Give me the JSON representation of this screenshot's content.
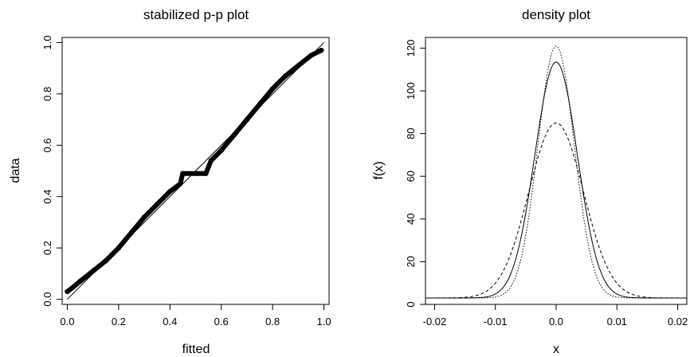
{
  "chart_data": [
    {
      "type": "scatter",
      "title": "stabilized p-p plot",
      "xlabel": "fitted",
      "ylabel": "data",
      "xlim": [
        -0.02,
        1.02
      ],
      "ylim": [
        -0.02,
        1.02
      ],
      "xticks": [
        "0.0",
        "0.2",
        "0.4",
        "0.6",
        "0.8",
        "1.0"
      ],
      "yticks": [
        "0.0",
        "0.2",
        "0.4",
        "0.6",
        "0.8",
        "1.0"
      ],
      "reference_line": {
        "x": [
          0,
          1
        ],
        "y": [
          0,
          1
        ]
      },
      "series": [
        {
          "x": [
            0.0,
            0.02,
            0.05,
            0.1,
            0.15,
            0.2,
            0.25,
            0.3,
            0.35,
            0.4,
            0.44,
            0.45,
            0.5,
            0.54,
            0.56,
            0.6,
            0.65,
            0.7,
            0.75,
            0.8,
            0.85,
            0.9,
            0.95,
            0.99
          ],
          "y": [
            0.03,
            0.045,
            0.07,
            0.11,
            0.15,
            0.2,
            0.26,
            0.32,
            0.37,
            0.42,
            0.45,
            0.49,
            0.49,
            0.49,
            0.54,
            0.58,
            0.64,
            0.7,
            0.76,
            0.82,
            0.87,
            0.91,
            0.95,
            0.97
          ]
        }
      ],
      "grid": false
    },
    {
      "type": "line",
      "title": "density plot",
      "xlabel": "x",
      "ylabel": "f(x)",
      "xlim": [
        -0.0215,
        0.0215
      ],
      "ylim": [
        0,
        125
      ],
      "xticks": [
        "-0.02",
        "-0.01",
        "0.0",
        "0.01",
        "0.02"
      ],
      "yticks": [
        "0",
        "20",
        "40",
        "60",
        "80",
        "100",
        "120"
      ],
      "series": [
        {
          "style": "solid",
          "peak": 113.5,
          "sigma": 0.0035,
          "tail": 3
        },
        {
          "style": "dotted",
          "peak": 121,
          "sigma": 0.003,
          "tail": 3
        },
        {
          "style": "dashed",
          "peak": 85,
          "sigma": 0.0045,
          "tail": 3
        }
      ],
      "grid": false
    }
  ]
}
